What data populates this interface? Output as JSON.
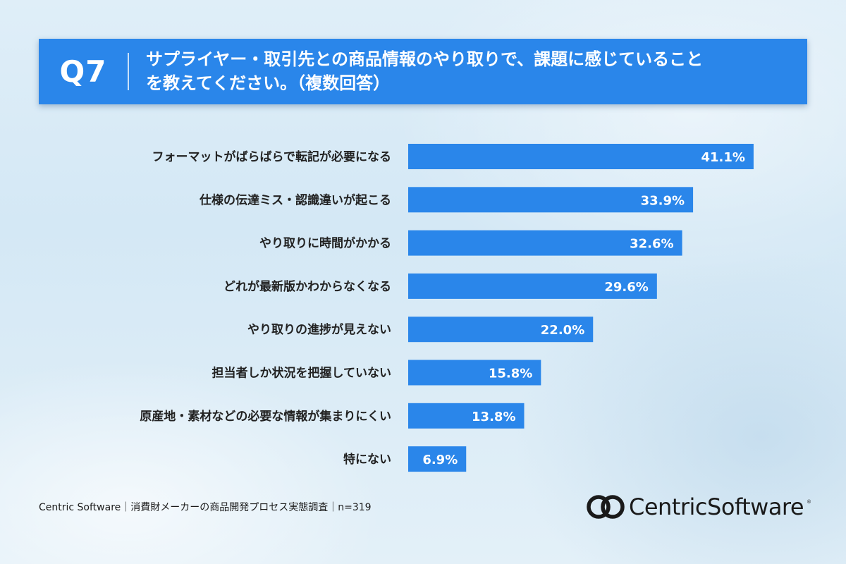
{
  "header": {
    "question_number": "Q7",
    "question_line1": "サプライヤー・取引先との商品情報のやり取りで、課題に感じていること",
    "question_line2": "を教えてください。（複数回答）"
  },
  "chart_data": {
    "type": "bar",
    "orientation": "horizontal",
    "categories": [
      "フォーマットがばらばらで転記が必要になる",
      "仕様の伝達ミス・認識違いが起こる",
      "やり取りに時間がかかる",
      "どれが最新版かわからなくなる",
      "やり取りの進捗が見えない",
      "担当者しか状況を把握していない",
      "原産地・素材などの必要な情報が集まりにくい",
      "特にない"
    ],
    "values": [
      41.1,
      33.9,
      32.6,
      29.6,
      22.0,
      15.8,
      13.8,
      6.9
    ],
    "value_labels": [
      "41.1%",
      "33.9%",
      "32.6%",
      "29.6%",
      "22.0%",
      "15.8%",
      "13.8%",
      "6.9%"
    ],
    "unit": "%",
    "xlim": [
      0,
      50
    ],
    "grid": false,
    "bar_color": "#2a86ea"
  },
  "footer": {
    "source": "Centric Software｜消費財メーカーの商品開発プロセス実態調査｜n=319"
  },
  "logo": {
    "text_part1": "Centric",
    "text_part2": "Software",
    "registered_mark": "®",
    "icon": "centric-logo-icon"
  },
  "colors": {
    "header_bg": "#2a86ea",
    "text_dark": "#222222"
  }
}
